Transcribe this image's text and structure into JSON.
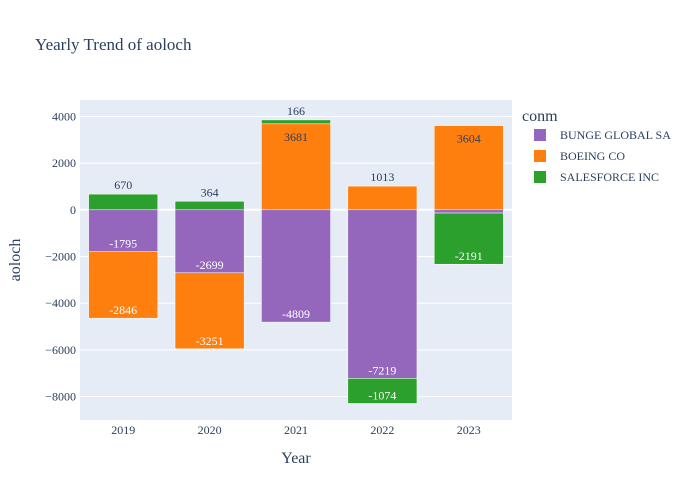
{
  "chart_data": {
    "type": "bar",
    "barmode": "relative",
    "title": "Yearly Trend of aoloch",
    "xlabel": "Year",
    "ylabel": "aoloch",
    "categories": [
      "2019",
      "2020",
      "2021",
      "2022",
      "2023"
    ],
    "ylim": [
      -9000,
      4700
    ],
    "yticks": [
      -8000,
      -6000,
      -4000,
      -2000,
      0,
      2000,
      4000
    ],
    "ytick_labels": [
      "−8000",
      "−6000",
      "−4000",
      "−2000",
      "0",
      "2000",
      "4000"
    ],
    "grid": true,
    "legend_title": "conm",
    "legend_position": "right",
    "series": [
      {
        "name": "BUNGE GLOBAL SA",
        "color": "#9467bd",
        "values": [
          -1795,
          -2699,
          -4809,
          -7219,
          -140
        ],
        "labels": [
          "-1795",
          "-2699",
          "-4809",
          "-7219",
          ""
        ]
      },
      {
        "name": "BOEING CO",
        "color": "#ff7f0e",
        "values": [
          -2846,
          -3251,
          3681,
          1013,
          3604
        ],
        "labels": [
          "-2846",
          "-3251",
          "3681",
          "1013",
          "3604"
        ]
      },
      {
        "name": "SALESFORCE INC",
        "color": "#2ca02c",
        "values": [
          670,
          364,
          166,
          -1074,
          -2191
        ],
        "labels": [
          "670",
          "364",
          "166",
          "-1074",
          "-2191"
        ]
      }
    ]
  }
}
